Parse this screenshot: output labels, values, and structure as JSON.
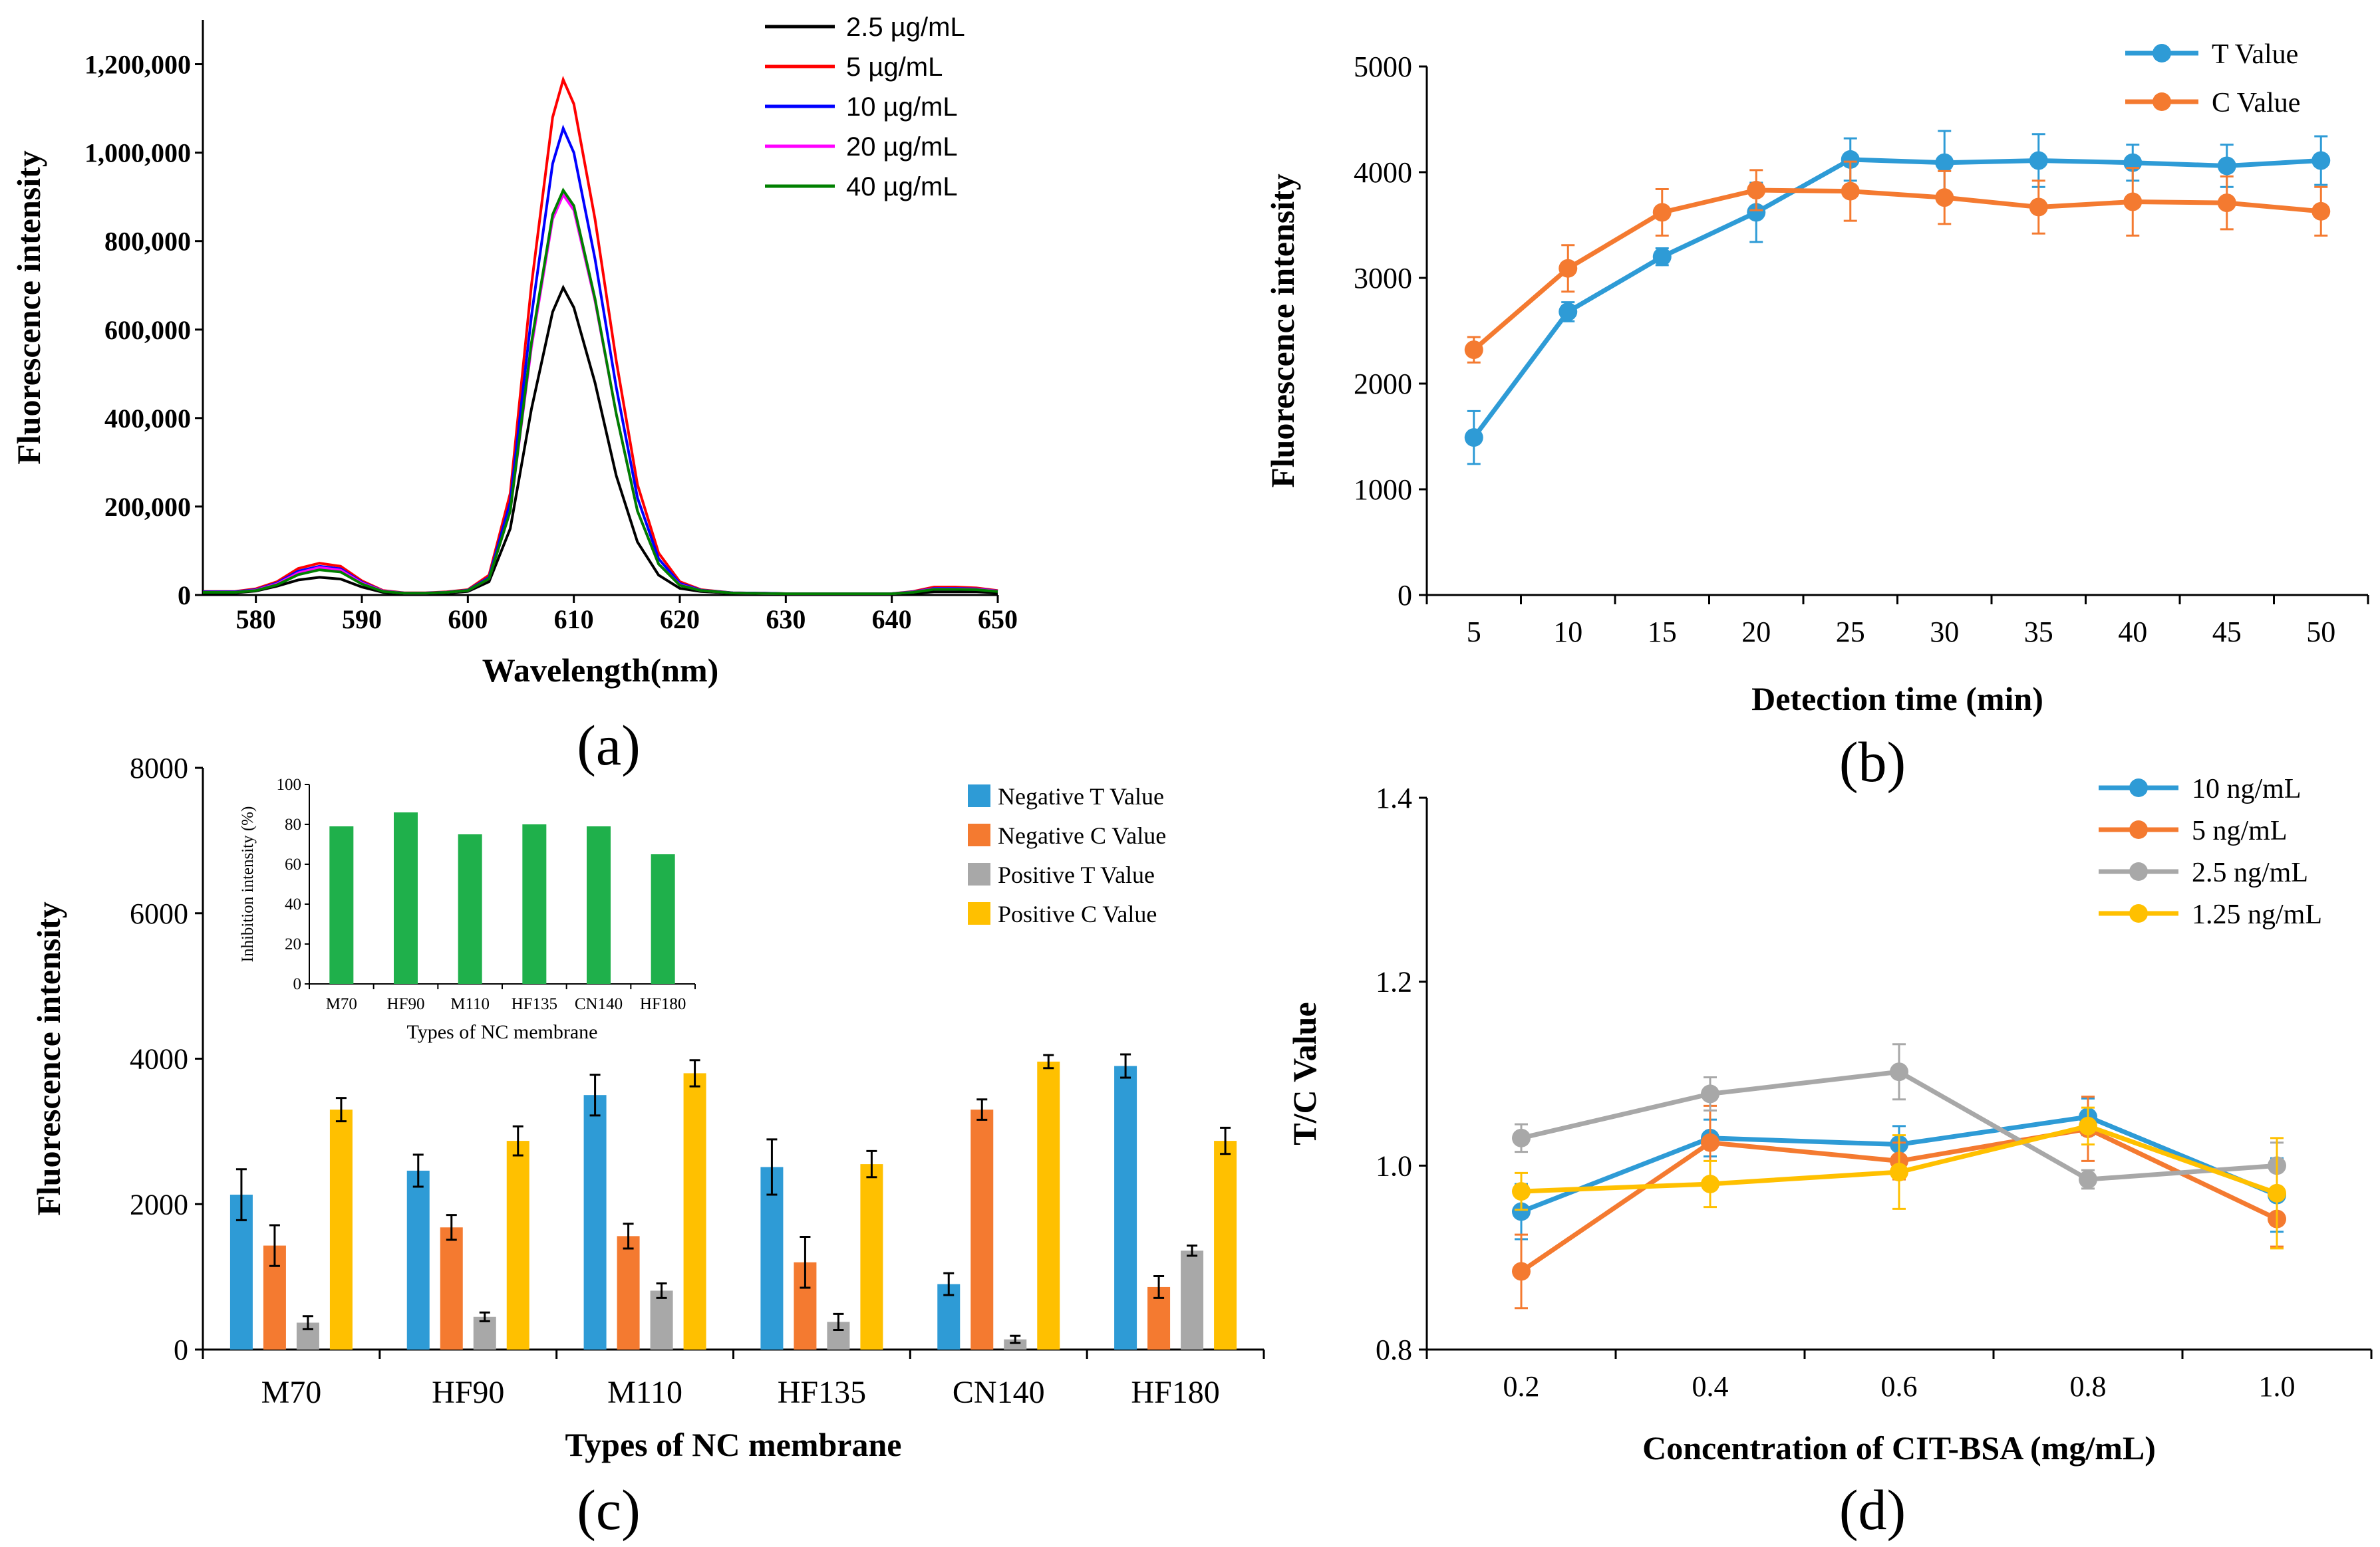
{
  "chart_data": [
    {
      "id": "a",
      "panel_label": "(a)",
      "type": "line",
      "xlabel": "Wavelength(nm)",
      "ylabel": "Fluorescence intensity",
      "xlim": [
        575,
        650
      ],
      "ylim": [
        0,
        1300000
      ],
      "xticks": [
        580,
        590,
        600,
        610,
        620,
        630,
        640,
        650
      ],
      "yticks": [
        0,
        200000,
        400000,
        600000,
        800000,
        1000000,
        1200000
      ],
      "ytick_labels": [
        "0",
        "200,000",
        "400,000",
        "600,000",
        "800,000",
        "1,000,000",
        "1,200,000"
      ],
      "legend_position": "top-right",
      "series": [
        {
          "name": "2.5 µg/mL",
          "color": "#000000",
          "x": [
            575,
            578,
            580,
            582,
            584,
            586,
            588,
            590,
            592,
            594,
            596,
            598,
            600,
            602,
            604,
            606,
            608,
            609,
            610,
            612,
            614,
            616,
            618,
            620,
            622,
            625,
            628,
            630,
            635,
            640,
            642,
            644,
            646,
            648,
            650
          ],
          "y": [
            5000,
            5000,
            9000,
            20000,
            34000,
            40000,
            36000,
            18000,
            6000,
            3000,
            3000,
            4000,
            8000,
            30000,
            150000,
            420000,
            640000,
            695000,
            650000,
            480000,
            270000,
            120000,
            45000,
            15000,
            8000,
            4000,
            3000,
            2000,
            2000,
            2000,
            4000,
            7000,
            7000,
            7000,
            5000
          ]
        },
        {
          "name": "5 µg/mL",
          "color": "#ff0000",
          "x": [
            575,
            578,
            580,
            582,
            584,
            586,
            588,
            590,
            592,
            594,
            596,
            598,
            600,
            602,
            604,
            606,
            608,
            609,
            610,
            612,
            614,
            616,
            618,
            620,
            622,
            625,
            628,
            630,
            635,
            640,
            642,
            644,
            646,
            648,
            650
          ],
          "y": [
            8000,
            8000,
            14000,
            30000,
            60000,
            72000,
            65000,
            32000,
            10000,
            5000,
            5000,
            7000,
            12000,
            45000,
            230000,
            700000,
            1080000,
            1165000,
            1110000,
            850000,
            530000,
            250000,
            95000,
            30000,
            12000,
            5000,
            4000,
            3000,
            3000,
            3000,
            8000,
            18000,
            18000,
            16000,
            10000
          ]
        },
        {
          "name": "10 µg/mL",
          "color": "#0000ff",
          "x": [
            575,
            578,
            580,
            582,
            584,
            586,
            588,
            590,
            592,
            594,
            596,
            598,
            600,
            602,
            604,
            606,
            608,
            609,
            610,
            612,
            614,
            616,
            618,
            620,
            622,
            625,
            628,
            630,
            635,
            640,
            642,
            644,
            646,
            648,
            650
          ],
          "y": [
            7000,
            7000,
            12000,
            27000,
            54000,
            65000,
            59000,
            29000,
            9000,
            4500,
            4500,
            6500,
            11000,
            40000,
            210000,
            630000,
            975000,
            1055000,
            1000000,
            760000,
            470000,
            220000,
            82000,
            26000,
            11000,
            5000,
            4000,
            3000,
            3000,
            3000,
            7000,
            15000,
            15000,
            14000,
            9000
          ]
        },
        {
          "name": "20 µg/mL",
          "color": "#ff00ff",
          "x": [
            575,
            578,
            580,
            582,
            584,
            586,
            588,
            590,
            592,
            594,
            596,
            598,
            600,
            602,
            604,
            606,
            608,
            609,
            610,
            612,
            614,
            616,
            618,
            620,
            622,
            625,
            628,
            630,
            635,
            640,
            642,
            644,
            646,
            648,
            650
          ],
          "y": [
            6000,
            6000,
            11000,
            25000,
            50000,
            62000,
            56000,
            27000,
            8500,
            4200,
            4200,
            6000,
            10000,
            37000,
            190000,
            560000,
            850000,
            905000,
            870000,
            665000,
            410000,
            190000,
            70000,
            23000,
            10000,
            4500,
            3500,
            2800,
            2800,
            2800,
            6500,
            14000,
            14000,
            13000,
            8500
          ]
        },
        {
          "name": "40 µg/mL",
          "color": "#008000",
          "x": [
            575,
            578,
            580,
            582,
            584,
            586,
            588,
            590,
            592,
            594,
            596,
            598,
            600,
            602,
            604,
            606,
            608,
            609,
            610,
            612,
            614,
            616,
            618,
            620,
            622,
            625,
            628,
            630,
            635,
            640,
            642,
            644,
            646,
            648,
            650
          ],
          "y": [
            6000,
            6000,
            10000,
            23000,
            46000,
            57000,
            52000,
            25000,
            8000,
            4000,
            4000,
            6000,
            10000,
            37000,
            190000,
            570000,
            860000,
            915000,
            880000,
            670000,
            410000,
            190000,
            70000,
            22000,
            10000,
            4500,
            3500,
            2800,
            2800,
            2800,
            6000,
            13000,
            13000,
            12000,
            8000
          ]
        }
      ]
    },
    {
      "id": "b",
      "panel_label": "(b)",
      "type": "line",
      "xlabel": "Detection time (min)",
      "ylabel": "Fluorescence intensity",
      "ylim": [
        0,
        5000
      ],
      "yticks": [
        0,
        1000,
        2000,
        3000,
        4000,
        5000
      ],
      "categories": [
        5,
        10,
        15,
        20,
        25,
        30,
        35,
        40,
        45,
        50
      ],
      "legend_position": "top-right",
      "series": [
        {
          "name": "T Value",
          "color": "#2e9bd6",
          "values": [
            1490,
            2680,
            3200,
            3620,
            4120,
            4090,
            4110,
            4090,
            4060,
            4110
          ],
          "errors": [
            250,
            90,
            80,
            280,
            200,
            300,
            250,
            170,
            200,
            230
          ]
        },
        {
          "name": "C Value",
          "color": "#f47a30",
          "values": [
            2320,
            3090,
            3620,
            3830,
            3820,
            3760,
            3670,
            3720,
            3710,
            3630
          ],
          "errors": [
            120,
            220,
            220,
            190,
            280,
            250,
            250,
            320,
            250,
            230
          ]
        }
      ]
    },
    {
      "id": "c",
      "panel_label": "(c)",
      "type": "bar",
      "xlabel": "Types of NC membrane",
      "ylabel": "Fluorescence intensity",
      "ylim": [
        0,
        8000
      ],
      "yticks": [
        0,
        2000,
        4000,
        6000,
        8000
      ],
      "categories": [
        "M70",
        "HF90",
        "M110",
        "HF135",
        "CN140",
        "HF180"
      ],
      "legend_position": "top-right",
      "series": [
        {
          "name": "Negative T Value",
          "color": "#2e9bd6",
          "values": [
            2130,
            2460,
            3500,
            2510,
            900,
            3900
          ],
          "errors": [
            350,
            220,
            280,
            380,
            150,
            160
          ]
        },
        {
          "name": "Negative C Value",
          "color": "#f47a30",
          "values": [
            1430,
            1680,
            1560,
            1200,
            3300,
            860
          ],
          "errors": [
            280,
            170,
            170,
            350,
            140,
            150
          ]
        },
        {
          "name": "Positive T Value",
          "color": "#a8a8a8",
          "values": [
            370,
            450,
            810,
            380,
            140,
            1360
          ],
          "errors": [
            90,
            60,
            100,
            110,
            50,
            70
          ]
        },
        {
          "name": "Positive C Value",
          "color": "#ffc000",
          "values": [
            3300,
            2870,
            3800,
            2550,
            3960,
            2870
          ],
          "errors": [
            160,
            200,
            180,
            180,
            90,
            180
          ]
        }
      ],
      "inset": {
        "type": "bar",
        "xlabel": "Types of NC membrane",
        "ylabel": "Inhibition intensity (%)",
        "ylim": [
          0,
          100
        ],
        "yticks": [
          0,
          20,
          40,
          60,
          80,
          100
        ],
        "categories": [
          "M70",
          "HF90",
          "M110",
          "HF135",
          "CN140",
          "HF180"
        ],
        "values": [
          79,
          86,
          75,
          80,
          79,
          65
        ],
        "color": "#1fb04b"
      }
    },
    {
      "id": "d",
      "panel_label": "(d)",
      "type": "line",
      "xlabel": "Concentration of CIT-BSA (mg/mL)",
      "ylabel": "T/C Value",
      "ylim": [
        0.8,
        1.4
      ],
      "yticks": [
        0.8,
        1.0,
        1.2,
        1.4
      ],
      "ytick_labels": [
        "0.8",
        "1.0",
        "1.2",
        "1.4"
      ],
      "categories": [
        "0.2",
        "0.4",
        "0.6",
        "0.8",
        "1.0"
      ],
      "legend_position": "top-right",
      "series": [
        {
          "name": "10 ng/mL",
          "color": "#2e9bd6",
          "values": [
            0.95,
            1.03,
            1.023,
            1.053,
            0.968
          ],
          "errors": [
            0.03,
            0.02,
            0.02,
            0.02,
            0.04
          ]
        },
        {
          "name": "5 ng/mL",
          "color": "#f47a30",
          "values": [
            0.885,
            1.025,
            1.005,
            1.04,
            0.942
          ],
          "errors": [
            0.04,
            0.04,
            0.02,
            0.035,
            0.03
          ]
        },
        {
          "name": "2.5 ng/mL",
          "color": "#a8a8a8",
          "values": [
            1.03,
            1.078,
            1.102,
            0.985,
            1.0
          ],
          "errors": [
            0.015,
            0.018,
            0.03,
            0.01,
            0.025
          ]
        },
        {
          "name": "1.25 ng/mL",
          "color": "#ffc000",
          "values": [
            0.972,
            0.98,
            0.993,
            1.043,
            0.97
          ],
          "errors": [
            0.02,
            0.025,
            0.04,
            0.02,
            0.06
          ]
        }
      ]
    }
  ]
}
